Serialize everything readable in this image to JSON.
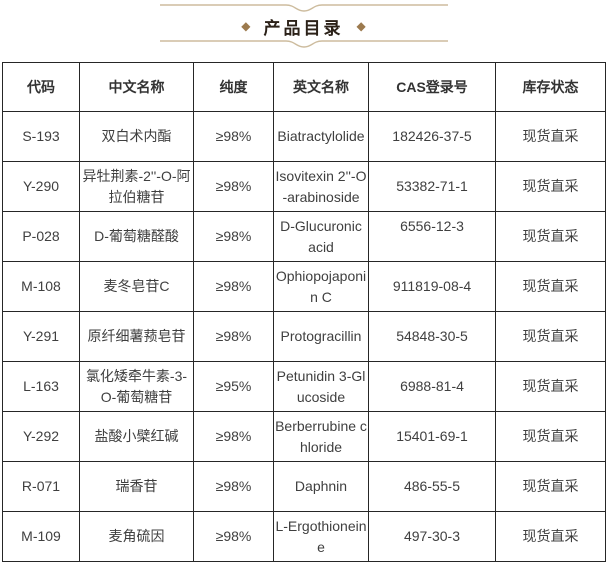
{
  "title": {
    "text": "产品目录",
    "left_diamond": "◆",
    "right_diamond": "◆",
    "accent_color": "#9c7a4e",
    "line_color": "#cdbc9e"
  },
  "table": {
    "headers": [
      "代码",
      "中文名称",
      "纯度",
      "英文名称",
      "CAS登录号",
      "库存状态"
    ],
    "rows": [
      {
        "code": "S-193",
        "cn_name": "双白术内酯",
        "purity": "≥98%",
        "en_name": "Biatractylolide",
        "cas": "182426-37-5",
        "stock": "现货直采"
      },
      {
        "code": "Y-290",
        "cn_name": "异牡荆素-2''-O-阿拉伯糖苷",
        "purity": "≥98%",
        "en_name": "Isovitexin 2''-O-arabinoside",
        "cas": "53382-71-1",
        "stock": "现货直采"
      },
      {
        "code": "P-028",
        "cn_name": "D-葡萄糖醛酸",
        "purity": "≥98%",
        "en_name": "D-Glucuronic acid",
        "cas": "6556-12-3",
        "stock": "现货直采"
      },
      {
        "code": "M-108",
        "cn_name": "麦冬皂苷C",
        "purity": "≥98%",
        "en_name": "Ophiopojaponin C",
        "cas": "911819-08-4",
        "stock": "现货直采"
      },
      {
        "code": "Y-291",
        "cn_name": "原纤细薯蓣皂苷",
        "purity": "≥98%",
        "en_name": "Protogracillin",
        "cas": "54848-30-5",
        "stock": "现货直采"
      },
      {
        "code": "L-163",
        "cn_name": "氯化矮牵牛素-3-O-葡萄糖苷",
        "purity": "≥95%",
        "en_name": "Petunidin 3-Glucoside",
        "cas": "6988-81-4",
        "stock": "现货直采"
      },
      {
        "code": "Y-292",
        "cn_name": "盐酸小檗红碱",
        "purity": "≥98%",
        "en_name": "Berberrubine chloride",
        "cas": "15401-69-1",
        "stock": "现货直采"
      },
      {
        "code": "R-071",
        "cn_name": "瑞香苷",
        "purity": "≥98%",
        "en_name": "Daphnin",
        "cas": "486-55-5",
        "stock": "现货直采"
      },
      {
        "code": "M-109",
        "cn_name": "麦角硫因",
        "purity": "≥98%",
        "en_name": "L-Ergothioneine",
        "cas": "497-30-3",
        "stock": "现货直采"
      }
    ]
  }
}
